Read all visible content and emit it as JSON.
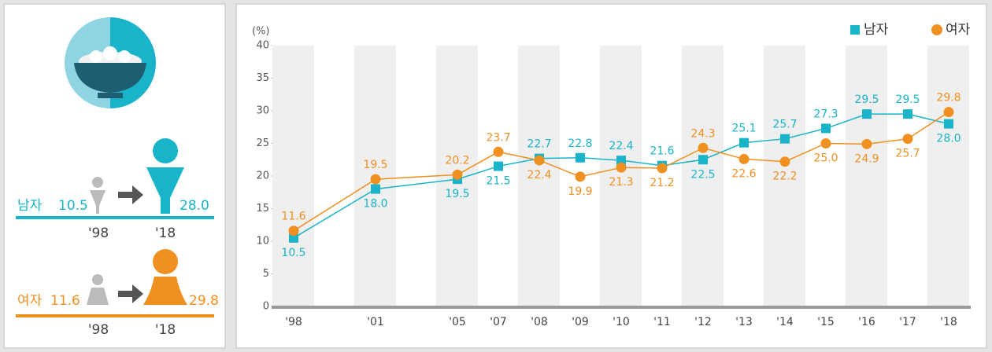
{
  "summary": {
    "men": {
      "label": "남자",
      "from": "10.5",
      "to": "28.0",
      "from_year": "'98",
      "to_year": "'18"
    },
    "women": {
      "label": "여자",
      "from": "11.6",
      "to": "29.8",
      "from_year": "'98",
      "to_year": "'18"
    }
  },
  "chart_data": {
    "type": "line",
    "y_unit_label": "(%)",
    "categories": [
      "'98",
      "'01",
      "'05",
      "'07",
      "'08",
      "'09",
      "'10",
      "'11",
      "'12",
      "'13",
      "'14",
      "'15",
      "'16",
      "'17",
      "'18"
    ],
    "series": [
      {
        "name": "남자",
        "color": "#19b4c9",
        "marker": "square",
        "values": [
          10.5,
          18.0,
          19.5,
          21.5,
          22.7,
          22.8,
          22.4,
          21.6,
          22.5,
          25.1,
          25.7,
          27.3,
          29.5,
          29.5,
          28.0
        ],
        "value_labels": [
          "10.5",
          "18.0",
          "19.5",
          "21.5",
          "22.7",
          "22.8",
          "22.4",
          "21.6",
          "22.5",
          "25.1",
          "25.7",
          "27.3",
          "29.5",
          "29.5",
          "28.0"
        ]
      },
      {
        "name": "여자",
        "color": "#ef9020",
        "marker": "circle",
        "values": [
          11.6,
          19.5,
          20.2,
          23.7,
          22.4,
          19.9,
          21.3,
          21.2,
          24.3,
          22.6,
          22.2,
          25.0,
          24.9,
          25.7,
          29.8
        ],
        "value_labels": [
          "11.6",
          "19.5",
          "20.2",
          "23.7",
          "22.4",
          "19.9",
          "21.3",
          "21.2",
          "24.3",
          "22.6",
          "22.2",
          "25.0",
          "24.9",
          "25.7",
          "29.8"
        ]
      }
    ],
    "ylim": [
      0,
      40
    ],
    "yticks": [
      0,
      5,
      10,
      15,
      20,
      25,
      30,
      35,
      40
    ],
    "legend": "top-right"
  }
}
